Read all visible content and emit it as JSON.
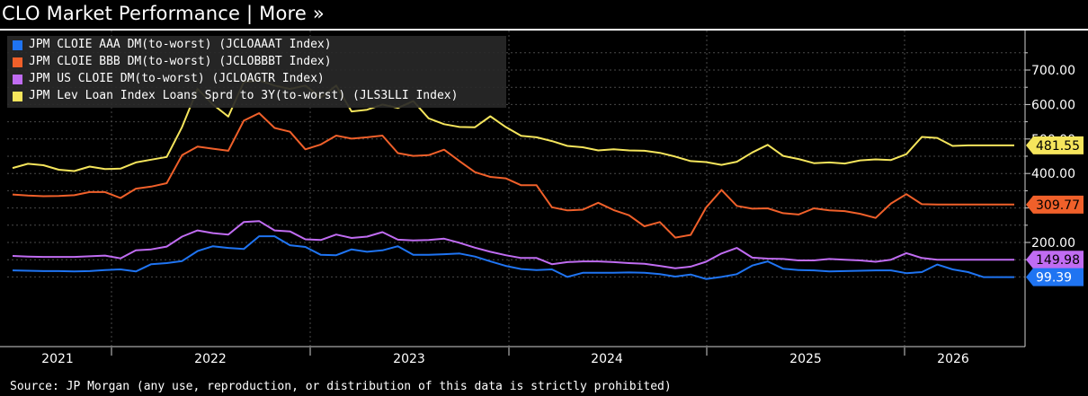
{
  "header": {
    "title": "CLO Market Performance | More »"
  },
  "footer": {
    "source": "Source:  JP Morgan (any use, reproduction, or distribution of this data is strictly prohibited)"
  },
  "chart_data": {
    "type": "line",
    "title": "CLO Market Performance",
    "x_tick_labels": [
      "2021",
      "2022",
      "2023",
      "2024",
      "2025",
      "2026"
    ],
    "y_tick_labels": [
      "200.00",
      "300.00",
      "400.00",
      "500.00",
      "600.00",
      "700.00"
    ],
    "ylim": [
      60,
      780
    ],
    "grid": true,
    "legend_position": "top-left",
    "x": [
      "2020-10",
      "2020-11",
      "2020-12",
      "2021-01",
      "2021-02",
      "2021-03",
      "2021-04",
      "2021-05",
      "2021-06",
      "2021-07",
      "2021-08",
      "2021-09",
      "2021-10",
      "2021-11",
      "2021-12",
      "2022-01",
      "2022-02",
      "2022-03",
      "2022-04",
      "2022-05",
      "2022-06",
      "2022-07",
      "2022-08",
      "2022-09",
      "2022-10",
      "2022-11",
      "2022-12",
      "2023-01",
      "2023-02",
      "2023-03",
      "2023-04",
      "2023-05",
      "2023-06",
      "2023-07",
      "2023-08",
      "2023-09",
      "2023-10",
      "2023-11",
      "2023-12",
      "2024-01",
      "2024-02",
      "2024-03",
      "2024-04",
      "2024-05",
      "2024-06",
      "2024-07",
      "2024-08",
      "2024-09",
      "2024-10",
      "2024-11",
      "2024-12",
      "2025-01",
      "2025-02",
      "2025-03",
      "2025-04",
      "2025-05",
      "2025-06",
      "2025-07",
      "2025-08",
      "2025-09",
      "2025-10",
      "2025-11",
      "2025-12",
      "2026-01",
      "2026-02",
      "2026-03"
    ],
    "series": [
      {
        "name": "JPM CLOIE AAA DM(to-worst) (JCLOAAAT Index)",
        "color": "#1f74f2",
        "values": [
          119,
          118,
          117,
          117,
          116,
          117,
          120,
          122,
          116,
          137,
          140,
          146,
          175,
          189,
          184,
          181,
          218,
          218,
          192,
          187,
          164,
          163,
          180,
          173,
          177,
          189,
          164,
          164,
          166,
          168,
          159,
          145,
          132,
          123,
          120,
          122,
          100,
          112,
          112,
          112,
          113,
          112,
          108,
          101,
          107,
          94,
          100,
          108,
          133,
          145,
          124,
          120,
          119,
          116,
          117,
          118,
          119,
          119,
          111,
          114,
          136,
          122,
          114,
          99.39,
          99.39,
          99.39
        ]
      },
      {
        "name": "JPM CLOIE BBB DM(to-worst) (JCLOBBBT Index)",
        "color": "#f0602a",
        "values": [
          339,
          336,
          334,
          335,
          337,
          346,
          346,
          329,
          356,
          362,
          372,
          453,
          478,
          472,
          466,
          553,
          575,
          532,
          521,
          470,
          484,
          510,
          501,
          505,
          510,
          459,
          451,
          453,
          469,
          436,
          404,
          390,
          386,
          366,
          366,
          302,
          293,
          295,
          315,
          294,
          279,
          247,
          259,
          214,
          222,
          301,
          352,
          306,
          298,
          299,
          285,
          281,
          299,
          293,
          291,
          283,
          271,
          313,
          340,
          311,
          309.77,
          309.77,
          309.77,
          309.77,
          309.77,
          309.77
        ]
      },
      {
        "name": "JPM US CLOIE DM(to-worst) (JCLOAGTR Index)",
        "color": "#c06cf2",
        "values": [
          161,
          159,
          158,
          158,
          158,
          160,
          162,
          154,
          177,
          180,
          188,
          217,
          235,
          227,
          223,
          259,
          262,
          235,
          232,
          209,
          207,
          223,
          213,
          217,
          230,
          208,
          206,
          207,
          211,
          199,
          185,
          173,
          163,
          155,
          155,
          137,
          143,
          145,
          145,
          143,
          140,
          138,
          132,
          125,
          130,
          144,
          168,
          184,
          156,
          153,
          152,
          148,
          148,
          152,
          150,
          148,
          144,
          150,
          169,
          155,
          149.98,
          149.98,
          149.98,
          149.98,
          149.98,
          149.98
        ]
      },
      {
        "name": "JPM Lev Loan Index Loans Sprd to 3Y(to-worst) (JLS3LLI Index)",
        "color": "#f5e55c",
        "values": [
          416,
          428,
          424,
          411,
          407,
          420,
          413,
          414,
          432,
          440,
          448,
          535,
          645,
          600,
          565,
          665,
          670,
          655,
          645,
          655,
          620,
          655,
          580,
          585,
          600,
          590,
          610,
          560,
          543,
          535,
          534,
          566,
          535,
          509,
          505,
          494,
          480,
          476,
          467,
          470,
          467,
          466,
          460,
          449,
          436,
          433,
          425,
          434,
          461,
          483,
          451,
          442,
          430,
          432,
          429,
          438,
          441,
          439,
          456,
          506,
          503,
          480,
          481.55,
          481.55,
          481.55,
          481.55
        ]
      }
    ],
    "last_value_labels": [
      "481.55",
      "309.77",
      "149.98",
      "99.39"
    ]
  }
}
